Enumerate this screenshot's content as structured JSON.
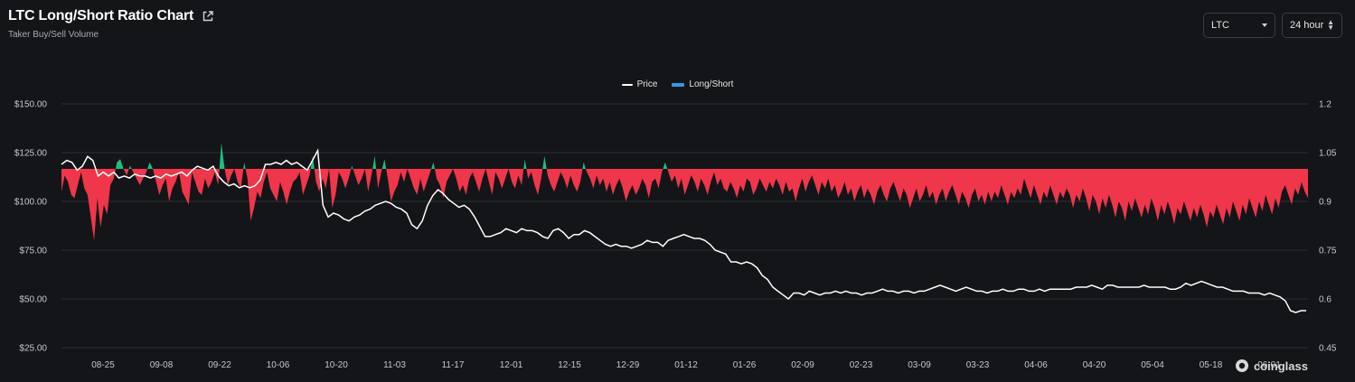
{
  "header": {
    "title": "LTC Long/Short Ratio Chart",
    "subtitle": "Taker Buy/Sell Volume"
  },
  "controls": {
    "coin": "LTC",
    "range": "24 hour"
  },
  "watermark": "coinglass",
  "colors": {
    "background": "#141518",
    "above_one": "#1fbe7c",
    "below_one": "#f0364a",
    "price_line": "#ffffff",
    "legend_long_short": "#2f9be8"
  },
  "chart_data": {
    "type": "line",
    "legend": [
      {
        "name": "Price",
        "type": "line"
      },
      {
        "name": "Long/Short",
        "type": "area"
      }
    ],
    "legend_position": "top-center",
    "x_tick_labels": [
      "08-25",
      "09-08",
      "09-22",
      "10-06",
      "10-20",
      "11-03",
      "11-17",
      "12-01",
      "12-15",
      "12-29",
      "01-12",
      "01-26",
      "02-09",
      "02-23",
      "03-09",
      "03-23",
      "04-06",
      "04-20",
      "05-04",
      "05-18",
      "06-01"
    ],
    "y_left": {
      "name": "Price",
      "ticks": [
        "$150.00",
        "$125.00",
        "$100.00",
        "$75.00",
        "$50.00",
        "$25.00"
      ],
      "range": [
        25,
        150
      ]
    },
    "y_right": {
      "name": "Long/Short",
      "ticks": [
        "1.2",
        "1.05",
        "0.9",
        "0.75",
        "0.6",
        "0.45"
      ],
      "range": [
        0.45,
        1.2
      ]
    },
    "baseline": 1.0,
    "grid": true,
    "series": [
      {
        "name": "Price",
        "axis": "left",
        "values": [
          119,
          121,
          120,
          116,
          118,
          123,
          121,
          113,
          115,
          113,
          115,
          112,
          113,
          112,
          114,
          113,
          113,
          112,
          113,
          112,
          114,
          113,
          114,
          115,
          113,
          116,
          118,
          117,
          116,
          118,
          113,
          110,
          108,
          109,
          107,
          108,
          107,
          108,
          111,
          119,
          119,
          120,
          119,
          121,
          119,
          120,
          118,
          116,
          121,
          126,
          98,
          92,
          94,
          93,
          91,
          90,
          92,
          93,
          95,
          96,
          98,
          99,
          100,
          99,
          97,
          96,
          94,
          88,
          86,
          90,
          98,
          103,
          106,
          104,
          101,
          99,
          97,
          98,
          96,
          92,
          87,
          82,
          82,
          83,
          84,
          86,
          85,
          84,
          86,
          85,
          85,
          84,
          82,
          81,
          85,
          86,
          84,
          81,
          83,
          83,
          85,
          84,
          82,
          80,
          78,
          77,
          78,
          77,
          77,
          76,
          77,
          78,
          80,
          79,
          79,
          77,
          80,
          81,
          82,
          83,
          82,
          81,
          81,
          80,
          78,
          75,
          74,
          73,
          69,
          69,
          68,
          69,
          68,
          66,
          62,
          60,
          56,
          54,
          52,
          50,
          53,
          53,
          52,
          54,
          53,
          52,
          53,
          53,
          54,
          53,
          54,
          53,
          53,
          52,
          53,
          53,
          54,
          55,
          54,
          54,
          53,
          54,
          54,
          53,
          54,
          54,
          55,
          56,
          57,
          56,
          55,
          54,
          55,
          56,
          55,
          54,
          54,
          53,
          54,
          54,
          55,
          54,
          54,
          55,
          55,
          54,
          54,
          55,
          54,
          55,
          55,
          55,
          55,
          55,
          56,
          56,
          56,
          57,
          56,
          55,
          57,
          57,
          56,
          56,
          56,
          56,
          56,
          57,
          56,
          56,
          56,
          56,
          55,
          55,
          56,
          58,
          57,
          58,
          59,
          58,
          57,
          56,
          56,
          55,
          54,
          54,
          54,
          53,
          53,
          53,
          52,
          53,
          52,
          51,
          49,
          44,
          43,
          44,
          44
        ],
        "source_length": 182
      },
      {
        "name": "Long/Short",
        "axis": "right",
        "values": [
          0.93,
          0.98,
          0.96,
          0.92,
          0.91,
          0.95,
          0.99,
          0.94,
          0.92,
          0.85,
          0.78,
          0.91,
          0.82,
          0.89,
          0.86,
          0.95,
          0.97,
          1.02,
          1.03,
          1.0,
          0.98,
          1.01,
          0.99,
          0.97,
          0.95,
          0.97,
          0.99,
          1.02,
          1.0,
          0.96,
          0.92,
          0.95,
          0.97,
          0.9,
          0.94,
          0.96,
          0.99,
          0.93,
          0.91,
          0.89,
          0.99,
          0.96,
          0.93,
          0.92,
          0.97,
          0.94,
          0.96,
          0.99,
          0.95,
          1.08,
          1.0,
          0.95,
          0.98,
          1.0,
          0.96,
          0.94,
          1.02,
          0.97,
          0.84,
          0.88,
          0.93,
          0.91,
          0.96,
          0.99,
          0.94,
          0.92,
          0.9,
          0.96,
          0.93,
          0.89,
          0.93,
          0.96,
          0.97,
          0.99,
          0.92,
          0.95,
          0.98,
          1.04,
          0.96,
          0.93,
          0.97,
          0.94,
          1.0,
          0.88,
          0.92,
          0.99,
          0.97,
          0.94,
          0.97,
          1.01,
          0.98,
          0.95,
          0.97,
          1.0,
          0.93,
          0.98,
          1.04,
          0.94,
          0.99,
          1.03,
          0.97,
          0.9,
          0.93,
          0.95,
          0.99,
          0.96,
          1.0,
          0.97,
          0.94,
          0.92,
          0.97,
          0.93,
          0.96,
          0.99,
          1.02,
          0.97,
          0.95,
          0.91,
          0.96,
          0.98,
          1.0,
          0.97,
          0.93,
          0.95,
          0.92,
          0.97,
          0.99,
          0.96,
          0.93,
          0.97,
          1.0,
          0.96,
          0.92,
          0.99,
          0.97,
          0.94,
          0.97,
          1.0,
          0.96,
          0.94,
          0.98,
          0.95,
          1.03,
          0.97,
          0.99,
          0.95,
          0.92,
          0.97,
          1.04,
          0.98,
          0.95,
          0.93,
          0.96,
          0.99,
          0.97,
          0.94,
          0.98,
          0.95,
          0.93,
          0.96,
          1.02,
          0.99,
          0.97,
          0.94,
          0.98,
          0.95,
          0.97,
          0.93,
          0.96,
          0.92,
          0.95,
          0.97,
          0.94,
          0.9,
          0.93,
          0.95,
          0.92,
          0.94,
          0.97,
          0.95,
          0.91,
          0.96,
          0.97,
          0.94,
          0.99,
          1.02,
          0.99,
          0.96,
          0.98,
          0.94,
          0.97,
          0.92,
          0.95,
          0.98,
          0.96,
          0.93,
          0.97,
          0.95,
          0.92,
          0.96,
          0.99,
          0.95,
          0.97,
          0.94,
          0.93,
          0.96,
          0.94,
          0.91,
          0.95,
          0.93,
          0.97,
          0.96,
          0.92,
          0.94,
          0.97,
          0.95,
          0.93,
          0.96,
          0.94,
          0.97,
          0.95,
          0.92,
          0.96,
          0.93,
          0.94,
          0.9,
          0.94,
          0.97,
          0.93,
          0.96,
          0.98,
          0.95,
          0.92,
          0.96,
          0.94,
          0.97,
          0.93,
          0.95,
          0.91,
          0.93,
          0.96,
          0.92,
          0.94,
          0.9,
          0.93,
          0.95,
          0.91,
          0.94,
          0.92,
          0.89,
          0.93,
          0.95,
          0.92,
          0.9,
          0.94,
          0.96,
          0.93,
          0.9,
          0.94,
          0.92,
          0.88,
          0.91,
          0.94,
          0.9,
          0.92,
          0.95,
          0.91,
          0.93,
          0.89,
          0.92,
          0.94,
          0.9,
          0.93,
          0.95,
          0.92,
          0.89,
          0.93,
          0.91,
          0.88,
          0.92,
          0.94,
          0.9,
          0.92,
          0.89,
          0.93,
          0.9,
          0.93,
          0.91,
          0.95,
          0.92,
          0.89,
          0.93,
          0.91,
          0.94,
          0.92,
          0.97,
          0.94,
          0.91,
          0.95,
          0.92,
          0.89,
          0.93,
          0.91,
          0.95,
          0.92,
          0.89,
          0.93,
          0.91,
          0.94,
          0.92,
          0.88,
          0.92,
          0.9,
          0.94,
          0.91,
          0.87,
          0.92,
          0.9,
          0.86,
          0.91,
          0.88,
          0.92,
          0.89,
          0.85,
          0.9,
          0.88,
          0.84,
          0.9,
          0.87,
          0.91,
          0.88,
          0.85,
          0.89,
          0.86,
          0.91,
          0.88,
          0.84,
          0.89,
          0.86,
          0.9,
          0.87,
          0.83,
          0.88,
          0.86,
          0.9,
          0.87,
          0.84,
          0.88,
          0.85,
          0.89,
          0.86,
          0.82,
          0.87,
          0.85,
          0.89,
          0.86,
          0.83,
          0.88,
          0.85,
          0.9,
          0.87,
          0.84,
          0.89,
          0.86,
          0.91,
          0.88,
          0.85,
          0.9,
          0.87,
          0.92,
          0.89,
          0.86,
          0.91,
          0.88,
          0.93,
          0.95,
          0.92,
          0.89,
          0.94,
          0.92,
          0.96,
          0.93,
          0.91
        ]
      }
    ]
  }
}
